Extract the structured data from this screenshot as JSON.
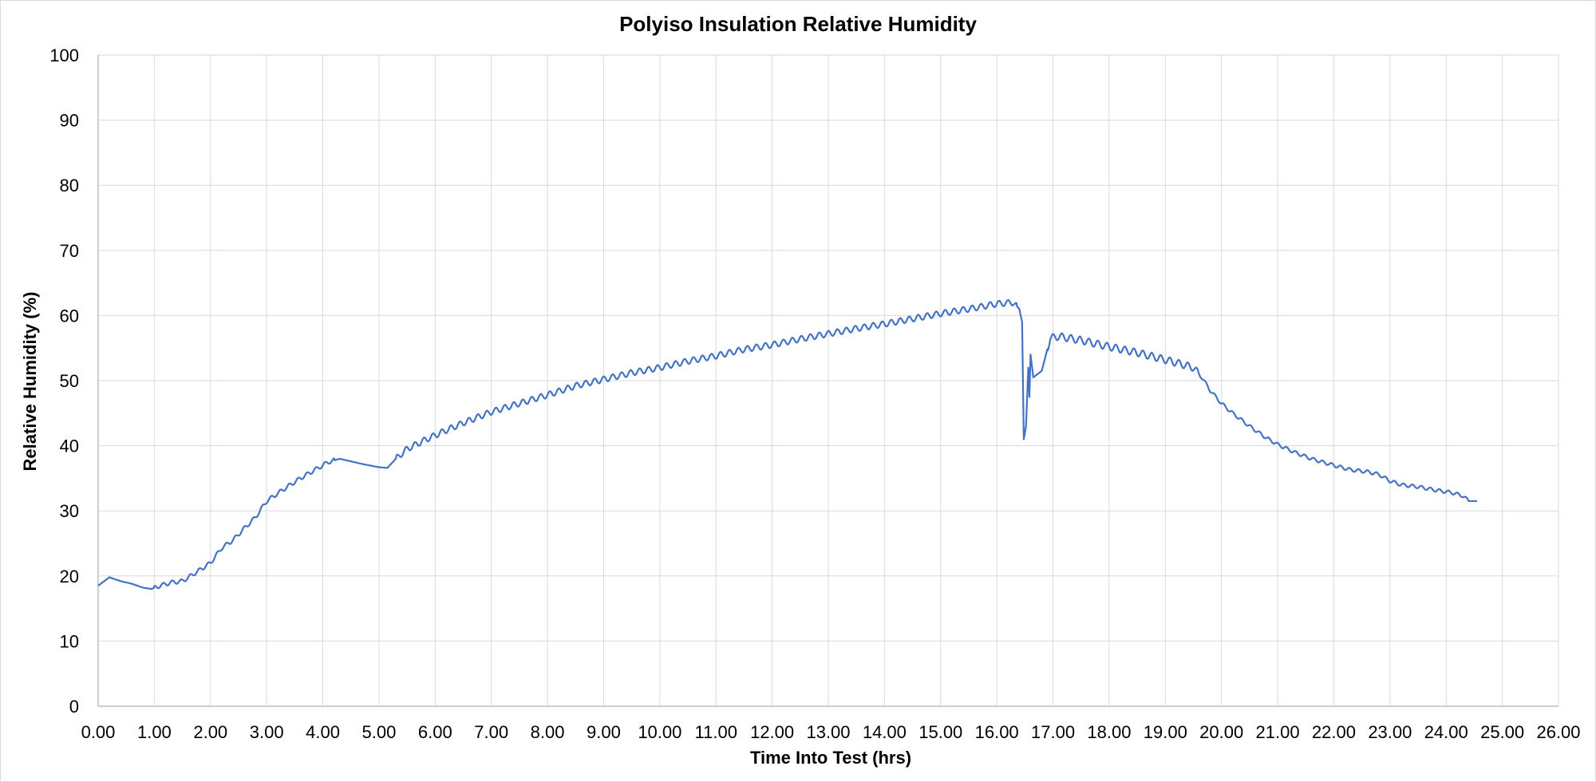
{
  "chart_data": {
    "type": "line",
    "title": "Polyiso Insulation Relative Humidity",
    "xlabel": "Time Into Test (hrs)",
    "ylabel": "Relative Humidity (%)",
    "xlim": [
      0,
      26
    ],
    "ylim": [
      0,
      100
    ],
    "x_ticks": [
      "0.00",
      "1.00",
      "2.00",
      "3.00",
      "4.00",
      "5.00",
      "6.00",
      "7.00",
      "8.00",
      "9.00",
      "10.00",
      "11.00",
      "12.00",
      "13.00",
      "14.00",
      "15.00",
      "16.00",
      "17.00",
      "18.00",
      "19.00",
      "20.00",
      "21.00",
      "22.00",
      "23.00",
      "24.00",
      "25.00",
      "26.00"
    ],
    "y_ticks": [
      "0",
      "10",
      "20",
      "30",
      "40",
      "50",
      "60",
      "70",
      "80",
      "90",
      "100"
    ],
    "grid": true,
    "legend": "none",
    "series_color": "#4472c4",
    "series": [
      {
        "points": [
          [
            0.0,
            18.5
          ],
          [
            0.2,
            19.8
          ],
          [
            0.4,
            19.2
          ],
          [
            0.6,
            18.8
          ],
          [
            0.8,
            18.2
          ],
          [
            0.95,
            18.0
          ],
          [
            1.1,
            18.5
          ],
          [
            1.3,
            19.0
          ],
          [
            1.5,
            19.2
          ],
          [
            1.7,
            20.3
          ],
          [
            2.0,
            22.0
          ],
          [
            2.2,
            24.3
          ],
          [
            2.4,
            25.5
          ],
          [
            2.6,
            27.3
          ],
          [
            2.8,
            29.0
          ],
          [
            3.0,
            31.5
          ],
          [
            3.3,
            33.3
          ],
          [
            3.6,
            35.0
          ],
          [
            3.9,
            36.5
          ],
          [
            4.1,
            37.5
          ],
          [
            4.3,
            38.0
          ],
          [
            4.5,
            37.6
          ],
          [
            4.7,
            37.2
          ],
          [
            5.0,
            36.7
          ],
          [
            5.15,
            36.6
          ],
          [
            5.3,
            38.0
          ],
          [
            5.5,
            39.5
          ],
          [
            5.8,
            40.8
          ],
          [
            6.1,
            42.0
          ],
          [
            6.5,
            43.5
          ],
          [
            7.0,
            45.2
          ],
          [
            7.5,
            46.5
          ],
          [
            8.0,
            47.8
          ],
          [
            8.5,
            49.2
          ],
          [
            9.0,
            50.2
          ],
          [
            9.5,
            51.2
          ],
          [
            10.0,
            52.0
          ],
          [
            10.5,
            53.0
          ],
          [
            11.0,
            53.8
          ],
          [
            11.5,
            54.8
          ],
          [
            12.0,
            55.5
          ],
          [
            12.5,
            56.4
          ],
          [
            13.0,
            57.2
          ],
          [
            13.5,
            58.0
          ],
          [
            14.0,
            58.7
          ],
          [
            14.5,
            59.5
          ],
          [
            15.0,
            60.3
          ],
          [
            15.5,
            61.0
          ],
          [
            16.0,
            61.8
          ],
          [
            16.3,
            62.0
          ],
          [
            16.4,
            61.0
          ],
          [
            16.45,
            59.0
          ],
          [
            16.48,
            41.0
          ],
          [
            16.52,
            43.0
          ],
          [
            16.56,
            52.0
          ],
          [
            16.58,
            47.5
          ],
          [
            16.6,
            54.0
          ],
          [
            16.65,
            50.5
          ],
          [
            16.8,
            51.5
          ],
          [
            16.95,
            56.5
          ],
          [
            17.1,
            56.8
          ],
          [
            17.5,
            56.2
          ],
          [
            18.0,
            55.2
          ],
          [
            18.5,
            54.3
          ],
          [
            19.0,
            53.2
          ],
          [
            19.3,
            52.5
          ],
          [
            19.5,
            52.0
          ],
          [
            19.65,
            50.5
          ],
          [
            19.8,
            48.5
          ],
          [
            20.0,
            46.5
          ],
          [
            20.2,
            45.0
          ],
          [
            20.5,
            43.0
          ],
          [
            20.8,
            41.2
          ],
          [
            21.0,
            40.2
          ],
          [
            21.3,
            39.0
          ],
          [
            21.6,
            38.0
          ],
          [
            22.0,
            37.0
          ],
          [
            22.3,
            36.3
          ],
          [
            22.6,
            36.0
          ],
          [
            22.8,
            35.6
          ],
          [
            23.0,
            34.6
          ],
          [
            23.2,
            34.0
          ],
          [
            23.5,
            33.7
          ],
          [
            23.8,
            33.2
          ],
          [
            24.1,
            32.8
          ],
          [
            24.3,
            32.3
          ],
          [
            24.4,
            31.5
          ],
          [
            24.55,
            31.5
          ]
        ]
      }
    ]
  }
}
